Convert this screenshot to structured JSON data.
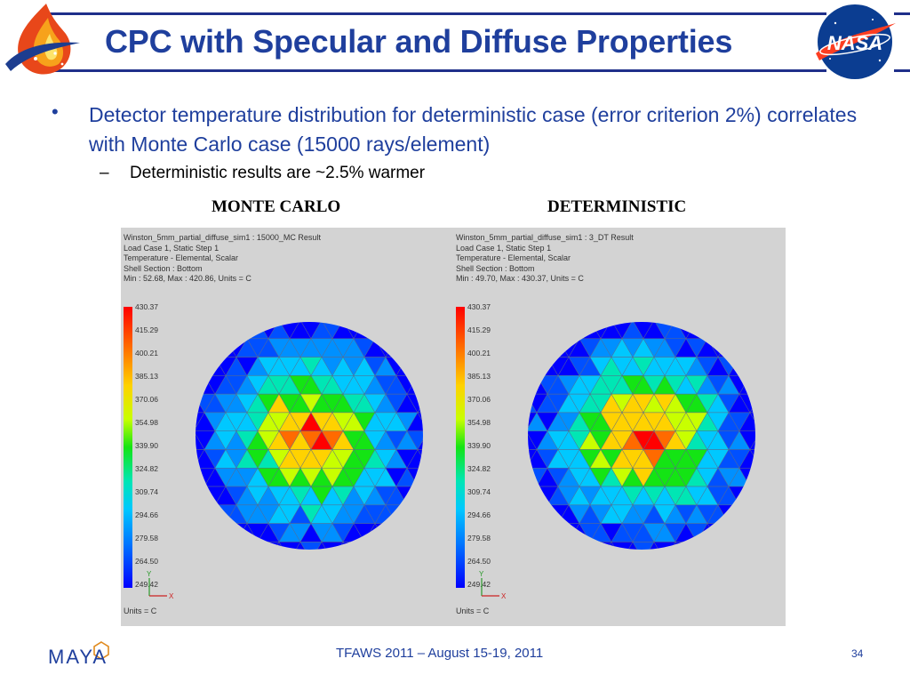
{
  "slide": {
    "title": "CPC with Specular and Diffuse Properties",
    "bullet": "Detector temperature distribution for deterministic case (error criterion 2%) correlates with Monte Carlo case (15000 rays/element)",
    "sub_bullet": "Deterministic results are ~2.5% warmer",
    "label_left": "MONTE CARLO",
    "label_right": "DETERMINISTIC",
    "footer": "TFAWS 2011 – August 15-19, 2011",
    "page_number": "34",
    "logo_left_text": "MAYA",
    "logo_right_text": "NASA"
  },
  "plots": [
    {
      "header": [
        "Winston_5mm_partial_diffuse_sim1 : 15000_MC Result",
        "Load Case 1, Static Step 1",
        "Temperature - Elemental, Scalar",
        "Shell Section : Bottom",
        "Min : 52.68, Max : 420.86, Units = C"
      ],
      "colorbar_ticks": [
        "430.37",
        "415.29",
        "400.21",
        "385.13",
        "370.06",
        "354.98",
        "339.90",
        "324.82",
        "309.74",
        "294.66",
        "279.58",
        "264.50",
        "249.42"
      ],
      "units": "Units = C",
      "axis_y": "Y",
      "axis_x": "X"
    },
    {
      "header": [
        "Winston_5mm_partial_diffuse_sim1 : 3_DT Result",
        "Load Case 1, Static Step 1",
        "Temperature - Elemental, Scalar",
        "Shell Section : Bottom",
        "Min : 49.70, Max : 430.37, Units = C"
      ],
      "colorbar_ticks": [
        "430.37",
        "415.29",
        "400.21",
        "385.13",
        "370.06",
        "354.98",
        "339.90",
        "324.82",
        "309.74",
        "294.66",
        "279.58",
        "264.50",
        "249.42"
      ],
      "units": "Units = C",
      "axis_y": "Y",
      "axis_x": "X"
    }
  ],
  "colors": {
    "title_blue": "#1f3f9d",
    "rule_blue": "#1f2f8a",
    "panel_gray": "#d3d3d3"
  }
}
